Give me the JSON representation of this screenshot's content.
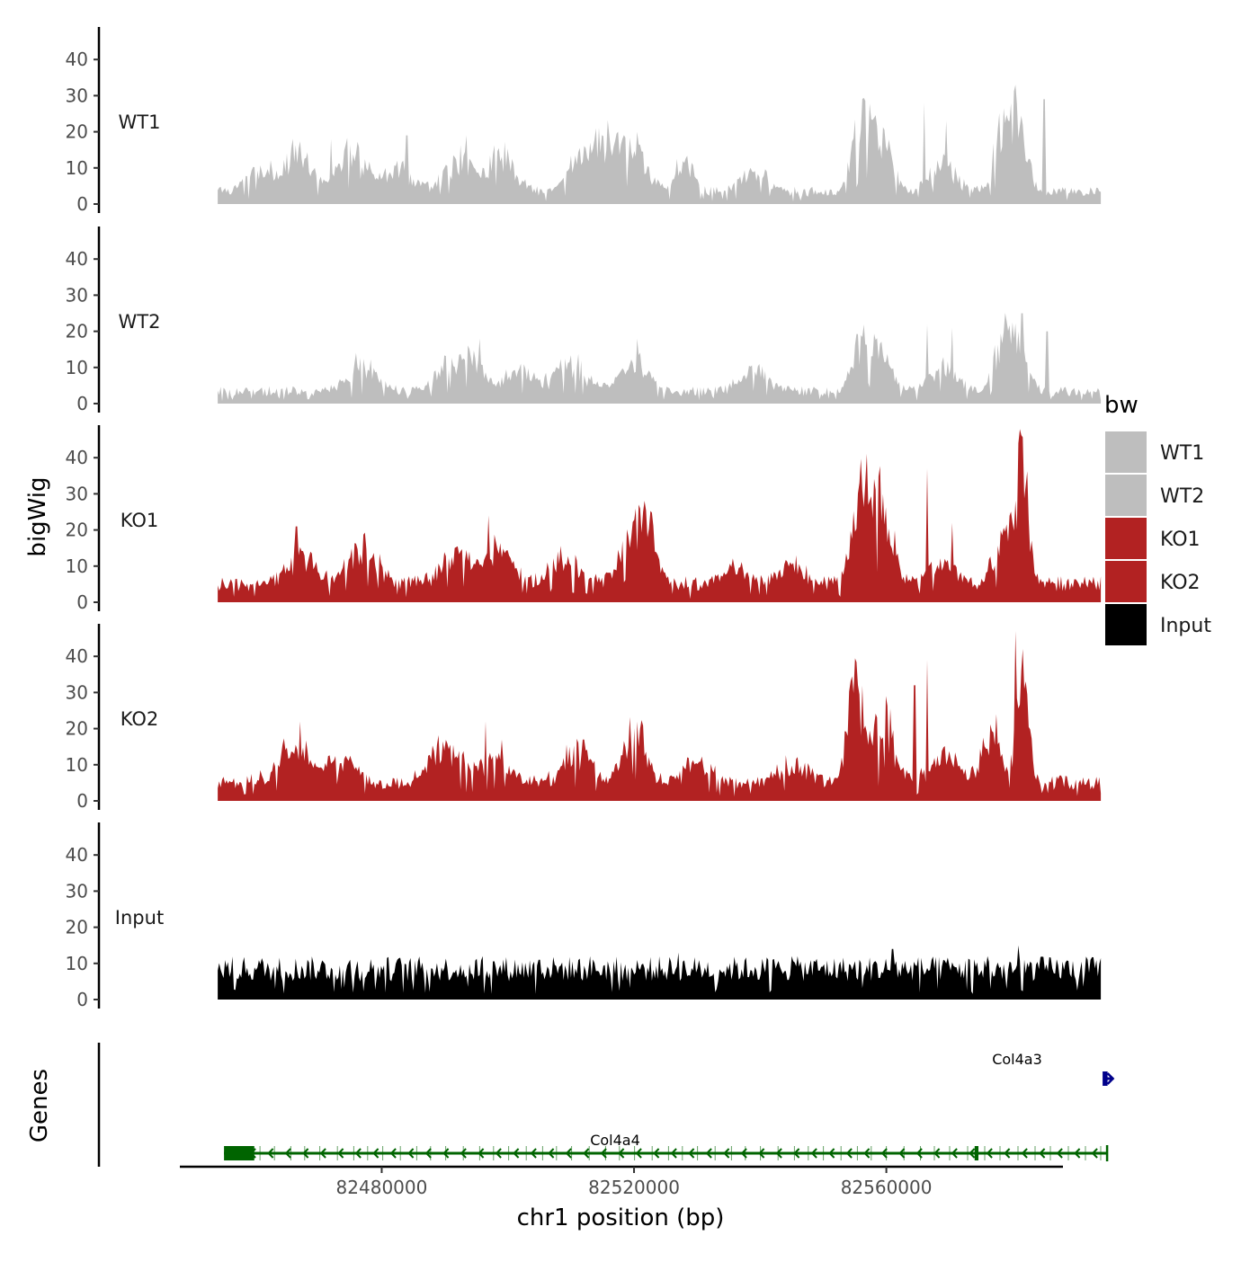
{
  "chart_data": {
    "type": "area",
    "title": "",
    "xlabel": "chr1 position (bp)",
    "ylabel": "bigWig",
    "genes_label": "Genes",
    "xlim": [
      82448000,
      82588000
    ],
    "x_ticks": [
      82480000,
      82520000,
      82560000
    ],
    "ylim": [
      0,
      48
    ],
    "y_ticks": [
      0,
      10,
      20,
      30,
      40
    ],
    "legend": {
      "title": "bw",
      "position": "right",
      "entries": [
        {
          "label": "WT1",
          "color": "#bebebe"
        },
        {
          "label": "WT2",
          "color": "#bebebe"
        },
        {
          "label": "KO1",
          "color": "#b22222"
        },
        {
          "label": "KO2",
          "color": "#b22222"
        },
        {
          "label": "Input",
          "color": "#000000"
        }
      ]
    },
    "bin_start": 82454000,
    "bin_end": 82594000,
    "tracks": [
      {
        "name": "WT1",
        "color": "#bebebe",
        "baseline": 2,
        "peaks": [
          [
            82461000,
            7,
            3000
          ],
          [
            82467000,
            12,
            2500
          ],
          [
            82475000,
            10,
            3500
          ],
          [
            82482500,
            6,
            3000
          ],
          [
            82492000,
            9,
            3000
          ],
          [
            82499000,
            10,
            3000
          ],
          [
            82511000,
            9,
            2000
          ],
          [
            82515000,
            14,
            2500
          ],
          [
            82519500,
            12,
            3000
          ],
          [
            82528000,
            8,
            2000
          ],
          [
            82539000,
            6,
            3000
          ],
          [
            82556000,
            16,
            2000
          ],
          [
            82559000,
            14,
            2500
          ],
          [
            82569000,
            8,
            3000
          ],
          [
            82578500,
            16,
            2000
          ],
          [
            82581000,
            14,
            2000
          ]
        ],
        "spikes": [
          [
            82566000,
            28
          ],
          [
            82569500,
            23
          ],
          [
            82580500,
            33
          ],
          [
            82585000,
            29
          ],
          [
            82520500,
            20
          ],
          [
            82513000,
            17
          ],
          [
            82484000,
            19
          ],
          [
            82472000,
            18
          ],
          [
            82493500,
            19
          ]
        ]
      },
      {
        "name": "WT2",
        "color": "#bebebe",
        "baseline": 2,
        "peaks": [
          [
            82477000,
            6,
            3500
          ],
          [
            82491000,
            7,
            3000
          ],
          [
            82494500,
            8,
            2500
          ],
          [
            82502000,
            6,
            3000
          ],
          [
            82510000,
            7,
            3500
          ],
          [
            82520000,
            8,
            3000
          ],
          [
            82539000,
            6,
            3000
          ],
          [
            82556000,
            11,
            2000
          ],
          [
            82559000,
            12,
            2500
          ],
          [
            82569000,
            6,
            3000
          ],
          [
            82578500,
            13,
            2000
          ],
          [
            82581000,
            12,
            2000
          ]
        ],
        "spikes": [
          [
            82495500,
            18
          ],
          [
            82520500,
            18
          ],
          [
            82566500,
            22
          ],
          [
            82570500,
            21
          ],
          [
            82581500,
            25
          ],
          [
            82585500,
            20
          ],
          [
            82476000,
            14
          ]
        ]
      },
      {
        "name": "KO1",
        "color": "#b22222",
        "baseline": 3,
        "peaks": [
          [
            82467000,
            8,
            3000
          ],
          [
            82477000,
            9,
            3500
          ],
          [
            82492000,
            8,
            3500
          ],
          [
            82499000,
            9,
            3000
          ],
          [
            82509000,
            7,
            3000
          ],
          [
            82519500,
            14,
            2500
          ],
          [
            82522500,
            12,
            2000
          ],
          [
            82536000,
            5,
            3000
          ],
          [
            82545000,
            5,
            3000
          ],
          [
            82556000,
            24,
            2000
          ],
          [
            82559500,
            22,
            2200
          ],
          [
            82569000,
            6,
            3000
          ],
          [
            82578500,
            12,
            2000
          ],
          [
            82581500,
            32,
            1400
          ]
        ],
        "spikes": [
          [
            82466500,
            21
          ],
          [
            82497000,
            24
          ],
          [
            82521500,
            25
          ],
          [
            82566500,
            37
          ],
          [
            82581000,
            44
          ],
          [
            82570500,
            22
          ]
        ]
      },
      {
        "name": "KO2",
        "color": "#b22222",
        "baseline": 3,
        "peaks": [
          [
            82466000,
            10,
            3500
          ],
          [
            82473500,
            7,
            3000
          ],
          [
            82490000,
            9,
            3500
          ],
          [
            82498000,
            8,
            3000
          ],
          [
            82511000,
            9,
            3000
          ],
          [
            82520000,
            14,
            2500
          ],
          [
            82530000,
            5,
            3000
          ],
          [
            82545000,
            5,
            3000
          ],
          [
            82555000,
            26,
            1800
          ],
          [
            82559500,
            18,
            2200
          ],
          [
            82569000,
            7,
            3000
          ],
          [
            82576500,
            12,
            2000
          ],
          [
            82581500,
            34,
            1300
          ]
        ],
        "spikes": [
          [
            82467000,
            22
          ],
          [
            82496500,
            22
          ],
          [
            82521000,
            20
          ],
          [
            82564500,
            32
          ],
          [
            82566500,
            39
          ],
          [
            82580500,
            47
          ],
          [
            82577500,
            24
          ],
          [
            82512000,
            17
          ]
        ]
      },
      {
        "name": "Input",
        "color": "#000000",
        "baseline": 5,
        "peaks": [],
        "spikes": [
          [
            82561000,
            14
          ],
          [
            82527000,
            13
          ],
          [
            82581000,
            15
          ],
          [
            82513000,
            12
          ],
          [
            82496000,
            12
          ],
          [
            82475000,
            11
          ],
          [
            82569000,
            11
          ],
          [
            82545000,
            12
          ],
          [
            82505000,
            11
          ],
          [
            82576000,
            12
          ]
        ]
      }
    ],
    "genes": [
      {
        "name": "Col4a4",
        "strand": "-",
        "start": 82455000,
        "end": 82595000,
        "color": "#006400",
        "thick_exons": [
          [
            82455000,
            82459800
          ],
          [
            82574000,
            82574600
          ]
        ],
        "row": "lower"
      },
      {
        "name": "Col4a3",
        "strand": "+",
        "start": 82594500,
        "end": 82596000,
        "color": "#00008b",
        "thick_exons": [
          [
            82594500,
            82594900
          ]
        ],
        "row": "upper"
      }
    ]
  }
}
